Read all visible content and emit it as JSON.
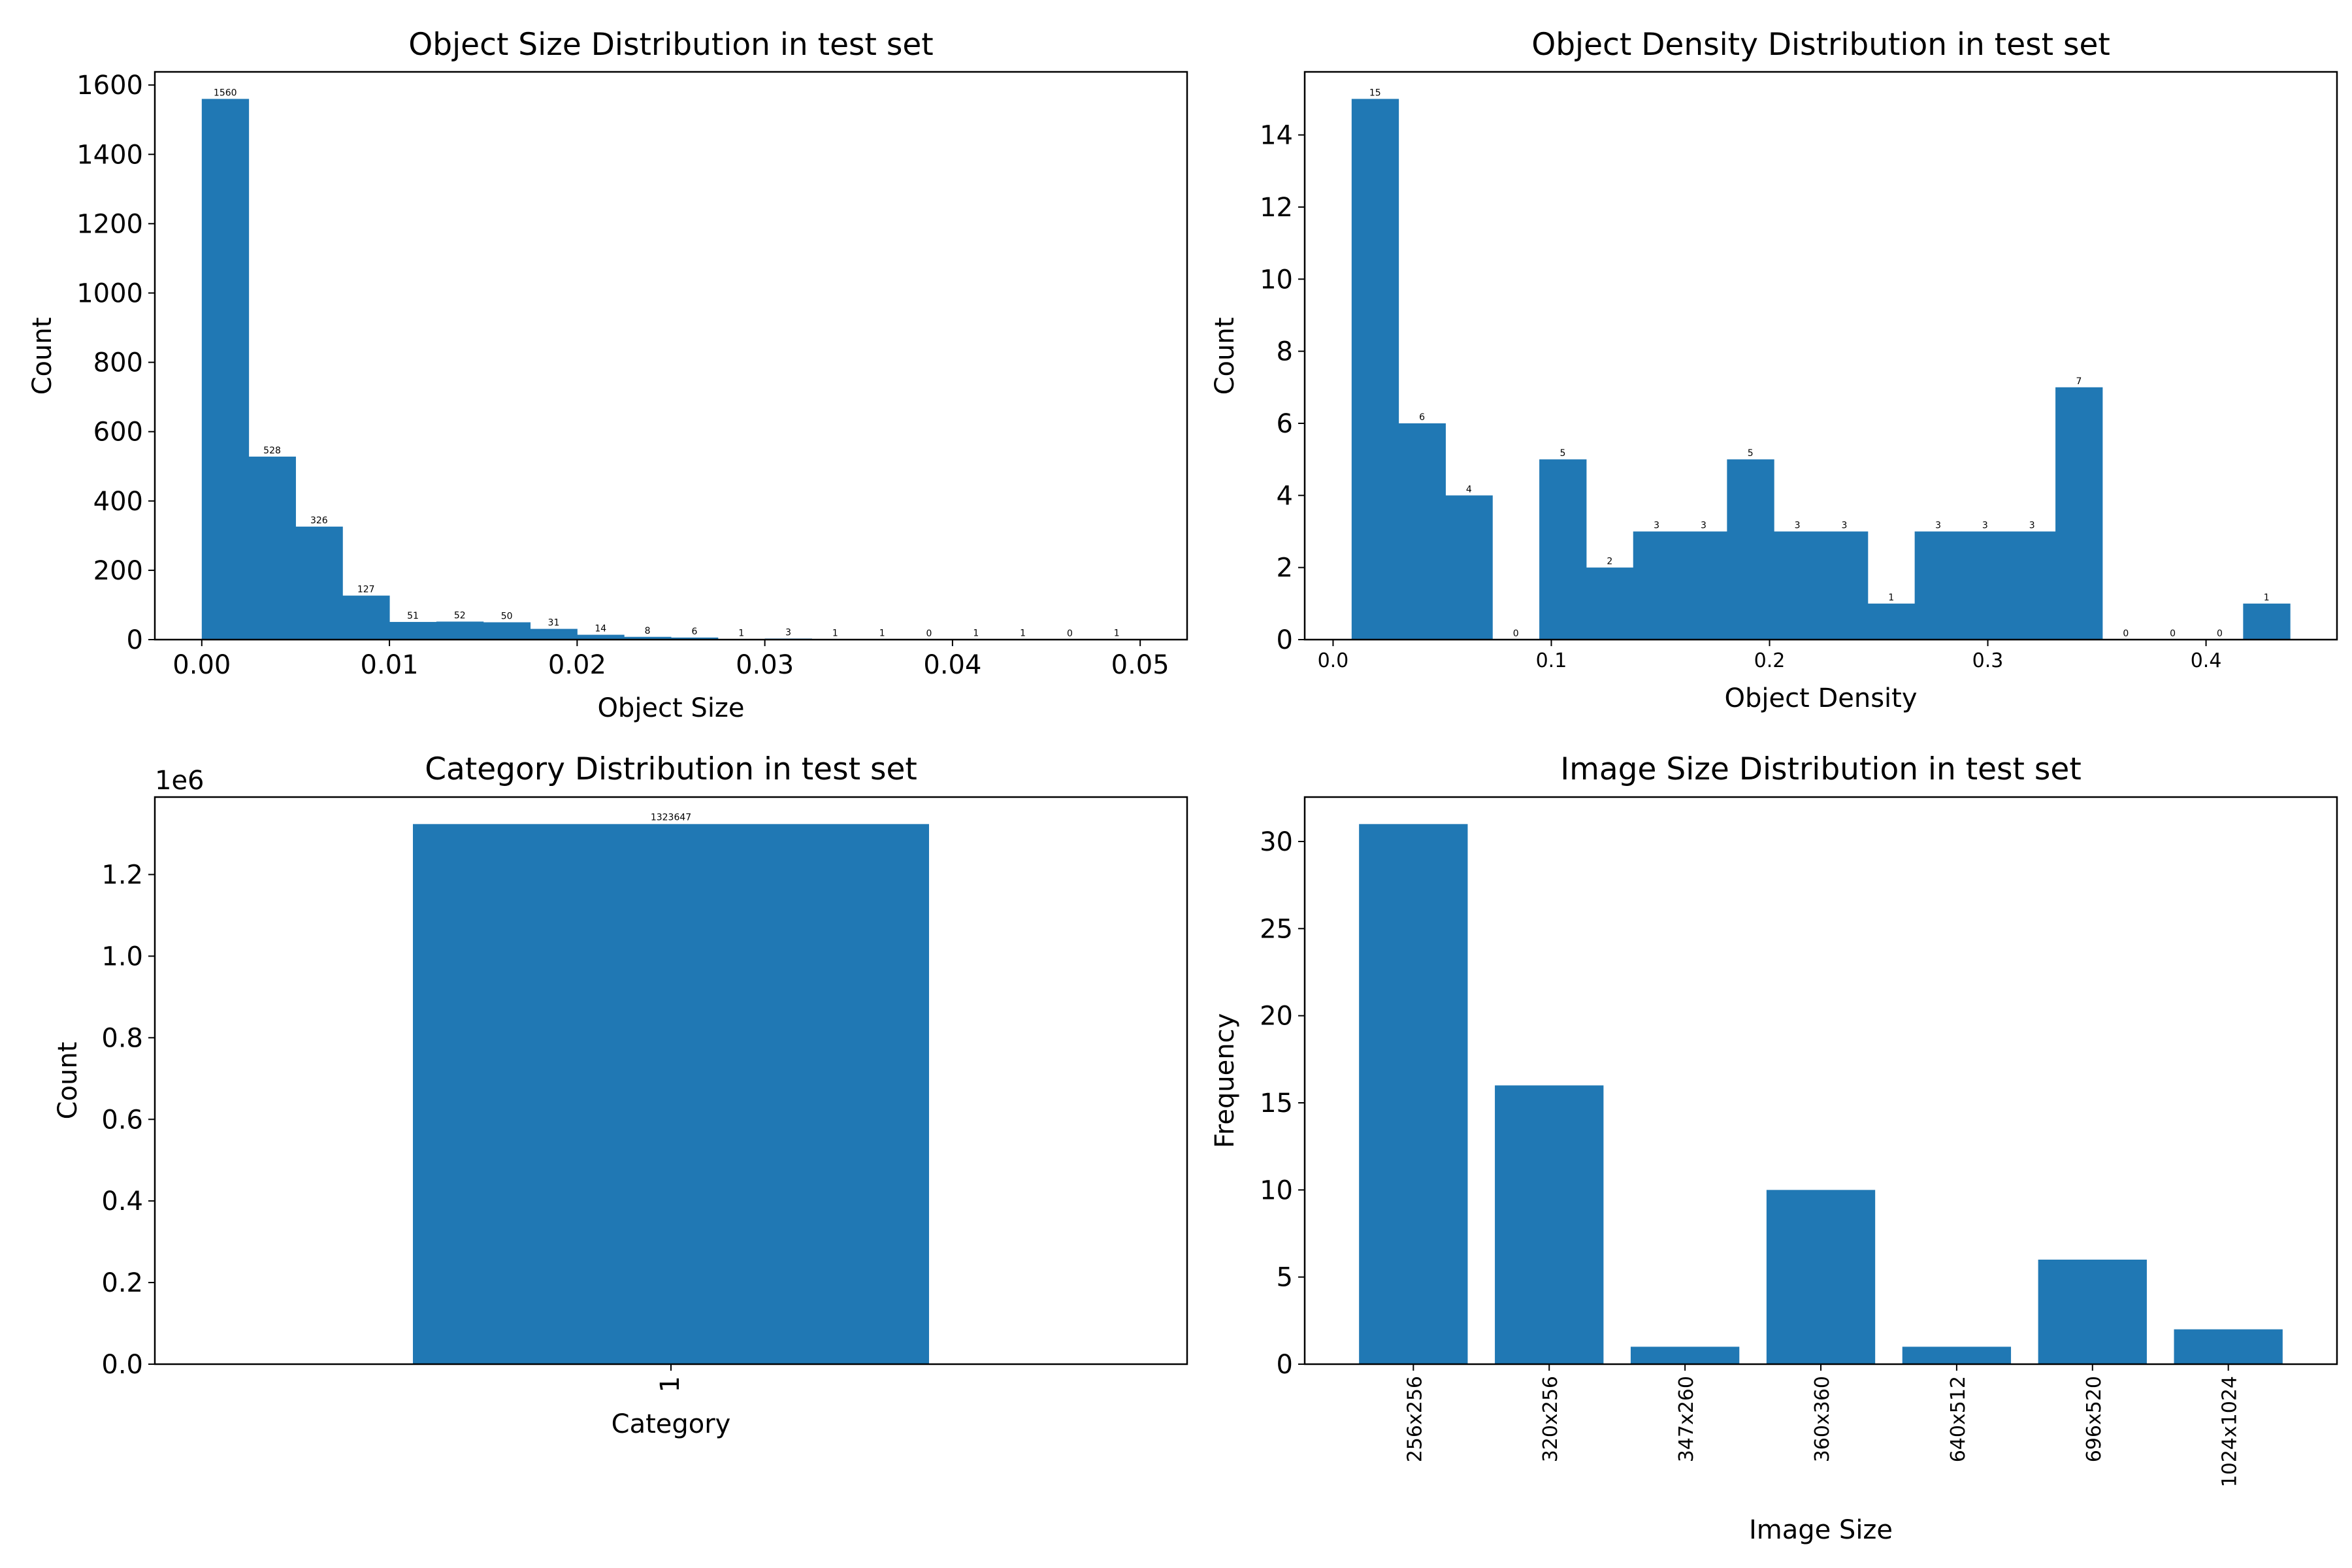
{
  "chart_data": [
    {
      "type": "bar",
      "title": "Object Size Distribution in test set",
      "xlabel": "Object Size",
      "ylabel": "Count",
      "bin_edges": [
        0.0,
        0.0025,
        0.005,
        0.0075,
        0.01,
        0.0125,
        0.015,
        0.0175,
        0.02,
        0.0225,
        0.025,
        0.0275,
        0.03,
        0.0325,
        0.035,
        0.0375,
        0.04,
        0.0425,
        0.045,
        0.0475,
        0.05
      ],
      "values": [
        1560,
        528,
        326,
        127,
        51,
        52,
        50,
        31,
        14,
        8,
        6,
        1,
        3,
        1,
        1,
        0,
        1,
        1,
        0,
        1
      ],
      "xlim": [
        -0.0025,
        0.0525
      ],
      "ylim": [
        0,
        1638
      ],
      "xticks": [
        0.0,
        0.01,
        0.02,
        0.03,
        0.04,
        0.05
      ],
      "xtick_labels": [
        "0.00",
        "0.01",
        "0.02",
        "0.03",
        "0.04",
        "0.05"
      ],
      "yticks": [
        0,
        200,
        400,
        600,
        800,
        1000,
        1200,
        1400,
        1600
      ],
      "ytick_labels": [
        "0",
        "200",
        "400",
        "600",
        "800",
        "1000",
        "1200",
        "1400",
        "1600"
      ],
      "grid": false,
      "color": "#2078b4"
    },
    {
      "type": "bar",
      "title": "Object Density Distribution in test set",
      "xlabel": "Object Density",
      "ylabel": "Count",
      "bin_edges": [
        0.0085,
        0.03,
        0.0515,
        0.073,
        0.0945,
        0.116,
        0.1375,
        0.159,
        0.1805,
        0.202,
        0.2235,
        0.245,
        0.2665,
        0.288,
        0.3095,
        0.331,
        0.3525,
        0.374,
        0.3955,
        0.417,
        0.4385
      ],
      "values": [
        15,
        6,
        4,
        0,
        5,
        2,
        3,
        3,
        5,
        3,
        3,
        1,
        3,
        3,
        3,
        7,
        0,
        0,
        0,
        1
      ],
      "xlim": [
        -0.013,
        0.46
      ],
      "ylim": [
        0,
        15.75
      ],
      "xticks": [
        0.0,
        0.1,
        0.2,
        0.3,
        0.4
      ],
      "xtick_labels": [
        "0.0",
        "0.1",
        "0.2",
        "0.3",
        "0.4"
      ],
      "yticks": [
        0,
        2,
        4,
        6,
        8,
        10,
        12,
        14
      ],
      "ytick_labels": [
        "0",
        "2",
        "4",
        "6",
        "8",
        "10",
        "12",
        "14"
      ],
      "grid": false,
      "color": "#2078b4"
    },
    {
      "type": "bar",
      "title": "Category Distribution in test set",
      "xlabel": "Category",
      "ylabel": "Count",
      "categories": [
        "1"
      ],
      "values": [
        1323647
      ],
      "value_labels": [
        "1323647"
      ],
      "offset_text": "1e6",
      "ylim": [
        0,
        1389829
      ],
      "yticks": [
        0,
        200000,
        400000,
        600000,
        800000,
        1000000,
        1200000
      ],
      "ytick_labels": [
        "0.0",
        "0.2",
        "0.4",
        "0.6",
        "0.8",
        "1.0",
        "1.2"
      ],
      "grid": false,
      "color": "#2078b4"
    },
    {
      "type": "bar",
      "title": "Image Size Distribution in test set",
      "xlabel": "Image Size",
      "ylabel": "Frequency",
      "categories": [
        "256x256",
        "320x256",
        "347x260",
        "360x360",
        "640x512",
        "696x520",
        "1024x1024"
      ],
      "values": [
        31,
        16,
        1,
        10,
        1,
        6,
        2
      ],
      "ylim": [
        0,
        32.55
      ],
      "yticks": [
        0,
        5,
        10,
        15,
        20,
        25,
        30
      ],
      "ytick_labels": [
        "0",
        "5",
        "10",
        "15",
        "20",
        "25",
        "30"
      ],
      "grid": false,
      "color": "#2078b4"
    }
  ]
}
